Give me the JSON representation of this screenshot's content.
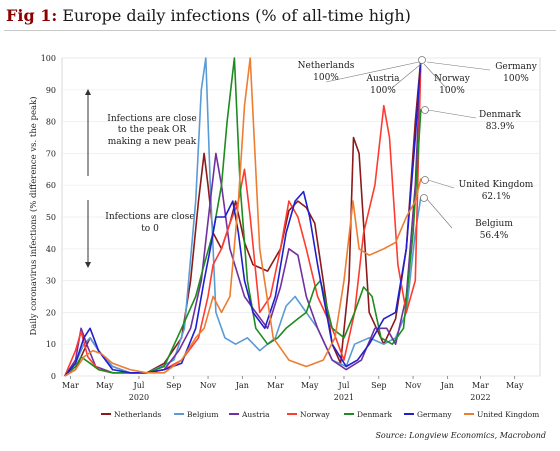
{
  "figure": {
    "title_prefix": "Fig 1:",
    "title": "Europe daily infections (% of all-time high)",
    "source": "Source: Longview Economics, Macrobond"
  },
  "chart_data": {
    "type": "line",
    "ylabel": "Daily coronavirus infections (% difference vs. the peak)",
    "ylim": [
      0,
      100
    ],
    "yticks": [
      0,
      10,
      20,
      30,
      40,
      50,
      60,
      70,
      80,
      90,
      100
    ],
    "x_start": "2020-02-15",
    "x_end": "2022-06-15",
    "month_ticks": [
      {
        "label": "Mar",
        "date": "2020-03-01"
      },
      {
        "label": "May",
        "date": "2020-05-01"
      },
      {
        "label": "Jul",
        "date": "2020-07-01"
      },
      {
        "label": "Sep",
        "date": "2020-09-01"
      },
      {
        "label": "Nov",
        "date": "2020-11-01"
      },
      {
        "label": "Jan",
        "date": "2021-01-01"
      },
      {
        "label": "Mar",
        "date": "2021-03-01"
      },
      {
        "label": "May",
        "date": "2021-05-01"
      },
      {
        "label": "Jul",
        "date": "2021-07-01"
      },
      {
        "label": "Sep",
        "date": "2021-09-01"
      },
      {
        "label": "Nov",
        "date": "2021-11-01"
      },
      {
        "label": "Jan",
        "date": "2022-01-01"
      },
      {
        "label": "Mar",
        "date": "2022-03-01"
      },
      {
        "label": "May",
        "date": "2022-05-01"
      }
    ],
    "year_labels": [
      {
        "label": "2020",
        "date": "2020-07-01"
      },
      {
        "label": "2021",
        "date": "2021-07-01"
      },
      {
        "label": "2022",
        "date": "2022-03-01"
      }
    ],
    "annotations": {
      "upper": "Infections are close to the peak OR making a new peak",
      "upper_lines": [
        "Infections are close",
        "to the peak OR",
        "making a new peak"
      ],
      "lower_lines": [
        "Infections are close",
        "to 0"
      ]
    },
    "end_labels": [
      {
        "name": "Netherlands",
        "value_text": "100%"
      },
      {
        "name": "Austria",
        "value_text": "100%"
      },
      {
        "name": "Norway",
        "value_text": "100%"
      },
      {
        "name": "Germany",
        "value_text": "100%"
      },
      {
        "name": "Denmark",
        "value_text": "83.9%"
      },
      {
        "name": "United Kingdom",
        "value_text": "62.1%"
      },
      {
        "name": "Belgium",
        "value_text": "56.4%"
      }
    ],
    "series": [
      {
        "name": "Netherlands",
        "color": "#8b1a1a",
        "x": [
          "2020-02-20",
          "2020-03-10",
          "2020-03-25",
          "2020-04-05",
          "2020-04-20",
          "2020-05-15",
          "2020-06-15",
          "2020-07-15",
          "2020-08-15",
          "2020-09-15",
          "2020-10-01",
          "2020-10-15",
          "2020-10-25",
          "2020-11-01",
          "2020-11-10",
          "2020-11-25",
          "2020-12-10",
          "2020-12-20",
          "2021-01-05",
          "2021-01-20",
          "2021-02-15",
          "2021-03-10",
          "2021-03-25",
          "2021-04-10",
          "2021-04-25",
          "2021-05-10",
          "2021-05-25",
          "2021-06-10",
          "2021-06-25",
          "2021-07-10",
          "2021-07-18",
          "2021-07-28",
          "2021-08-15",
          "2021-09-10",
          "2021-10-01",
          "2021-10-20",
          "2021-11-05",
          "2021-11-15"
        ],
        "y": [
          0,
          2,
          8,
          12,
          8,
          3,
          1,
          1,
          4,
          12,
          30,
          55,
          70,
          60,
          45,
          40,
          48,
          55,
          42,
          35,
          33,
          40,
          52,
          55,
          53,
          48,
          30,
          10,
          4,
          30,
          75,
          70,
          20,
          10,
          18,
          40,
          80,
          100
        ]
      },
      {
        "name": "Belgium",
        "color": "#5b9bd5",
        "x": [
          "2020-02-20",
          "2020-03-10",
          "2020-03-25",
          "2020-04-05",
          "2020-04-20",
          "2020-05-15",
          "2020-06-15",
          "2020-07-15",
          "2020-08-10",
          "2020-09-01",
          "2020-09-20",
          "2020-10-10",
          "2020-10-20",
          "2020-10-28",
          "2020-11-05",
          "2020-11-15",
          "2020-12-01",
          "2020-12-20",
          "2021-01-10",
          "2021-02-01",
          "2021-03-01",
          "2021-03-20",
          "2021-04-05",
          "2021-04-25",
          "2021-05-15",
          "2021-06-10",
          "2021-07-05",
          "2021-07-20",
          "2021-08-15",
          "2021-09-10",
          "2021-10-01",
          "2021-10-20",
          "2021-11-05",
          "2021-11-15"
        ],
        "y": [
          0,
          4,
          10,
          12,
          8,
          3,
          1,
          1,
          3,
          5,
          15,
          55,
          90,
          100,
          60,
          20,
          12,
          10,
          12,
          8,
          12,
          22,
          25,
          20,
          15,
          5,
          3,
          10,
          12,
          10,
          12,
          20,
          45,
          56.4
        ]
      },
      {
        "name": "Austria",
        "color": "#7030a0",
        "x": [
          "2020-02-20",
          "2020-03-10",
          "2020-03-20",
          "2020-03-30",
          "2020-04-15",
          "2020-05-15",
          "2020-06-15",
          "2020-07-15",
          "2020-08-15",
          "2020-09-10",
          "2020-10-01",
          "2020-10-20",
          "2020-11-05",
          "2020-11-15",
          "2020-11-25",
          "2020-12-10",
          "2021-01-05",
          "2021-01-25",
          "2021-02-15",
          "2021-03-10",
          "2021-03-25",
          "2021-04-10",
          "2021-04-25",
          "2021-05-15",
          "2021-06-10",
          "2021-07-05",
          "2021-08-01",
          "2021-08-25",
          "2021-09-15",
          "2021-10-01",
          "2021-10-20",
          "2021-11-05",
          "2021-11-15"
        ],
        "y": [
          0,
          5,
          15,
          10,
          3,
          1,
          1,
          1,
          2,
          8,
          15,
          30,
          55,
          70,
          60,
          40,
          25,
          20,
          15,
          28,
          40,
          38,
          25,
          15,
          5,
          2,
          5,
          15,
          15,
          10,
          25,
          60,
          100
        ]
      },
      {
        "name": "Norway",
        "color": "#ff3b2f",
        "x": [
          "2020-02-20",
          "2020-03-10",
          "2020-03-20",
          "2020-04-01",
          "2020-04-20",
          "2020-05-15",
          "2020-06-15",
          "2020-07-15",
          "2020-08-15",
          "2020-09-15",
          "2020-10-15",
          "2020-11-01",
          "2020-11-10",
          "2020-11-25",
          "2020-12-10",
          "2020-12-25",
          "2021-01-05",
          "2021-01-15",
          "2021-02-01",
          "2021-02-20",
          "2021-03-10",
          "2021-03-25",
          "2021-04-10",
          "2021-04-25",
          "2021-05-15",
          "2021-06-10",
          "2021-07-01",
          "2021-07-20",
          "2021-08-05",
          "2021-08-25",
          "2021-09-10",
          "2021-09-20",
          "2021-10-05",
          "2021-10-20",
          "2021-11-05",
          "2021-11-15"
        ],
        "y": [
          0,
          8,
          14,
          6,
          2,
          1,
          1,
          1,
          2,
          5,
          12,
          25,
          35,
          40,
          48,
          55,
          65,
          50,
          20,
          25,
          40,
          55,
          50,
          40,
          25,
          15,
          5,
          20,
          45,
          60,
          85,
          75,
          35,
          20,
          30,
          100
        ]
      },
      {
        "name": "Denmark",
        "color": "#1e8c1e",
        "x": [
          "2020-02-20",
          "2020-03-10",
          "2020-03-20",
          "2020-04-05",
          "2020-04-20",
          "2020-05-15",
          "2020-06-15",
          "2020-07-15",
          "2020-08-15",
          "2020-09-15",
          "2020-10-10",
          "2020-10-25",
          "2020-11-10",
          "2020-11-25",
          "2020-12-05",
          "2020-12-18",
          "2020-12-28",
          "2021-01-10",
          "2021-01-25",
          "2021-02-15",
          "2021-03-05",
          "2021-03-20",
          "2021-04-10",
          "2021-04-25",
          "2021-05-10",
          "2021-05-20",
          "2021-06-10",
          "2021-07-01",
          "2021-07-20",
          "2021-08-05",
          "2021-08-20",
          "2021-09-05",
          "2021-09-25",
          "2021-10-15",
          "2021-11-01",
          "2021-11-10",
          "2021-11-15"
        ],
        "y": [
          0,
          3,
          6,
          4,
          2,
          1,
          1,
          1,
          3,
          15,
          25,
          35,
          45,
          60,
          80,
          100,
          60,
          30,
          15,
          10,
          12,
          15,
          18,
          20,
          28,
          30,
          15,
          12,
          20,
          28,
          25,
          12,
          10,
          15,
          45,
          70,
          83.9
        ]
      },
      {
        "name": "Germany",
        "color": "#1f1fd1",
        "x": [
          "2020-02-20",
          "2020-03-10",
          "2020-03-25",
          "2020-04-05",
          "2020-04-20",
          "2020-05-15",
          "2020-06-15",
          "2020-07-15",
          "2020-08-15",
          "2020-09-15",
          "2020-10-10",
          "2020-10-25",
          "2020-11-05",
          "2020-11-15",
          "2020-12-01",
          "2020-12-15",
          "2020-12-25",
          "2021-01-05",
          "2021-01-20",
          "2021-02-10",
          "2021-03-01",
          "2021-03-20",
          "2021-04-05",
          "2021-04-20",
          "2021-05-01",
          "2021-05-15",
          "2021-06-10",
          "2021-07-05",
          "2021-07-25",
          "2021-08-15",
          "2021-09-10",
          "2021-10-01",
          "2021-10-20",
          "2021-11-05",
          "2021-11-15"
        ],
        "y": [
          0,
          4,
          12,
          15,
          8,
          2,
          1,
          1,
          2,
          4,
          15,
          30,
          40,
          50,
          50,
          55,
          45,
          30,
          20,
          15,
          25,
          45,
          55,
          58,
          50,
          35,
          10,
          3,
          5,
          10,
          18,
          20,
          40,
          75,
          100
        ]
      },
      {
        "name": "United Kingdom",
        "color": "#ed7d31",
        "x": [
          "2020-02-20",
          "2020-03-10",
          "2020-03-25",
          "2020-04-10",
          "2020-04-25",
          "2020-05-15",
          "2020-06-15",
          "2020-07-15",
          "2020-08-15",
          "2020-09-15",
          "2020-10-10",
          "2020-10-25",
          "2020-11-10",
          "2020-11-25",
          "2020-12-10",
          "2020-12-25",
          "2021-01-05",
          "2021-01-15",
          "2021-02-01",
          "2021-02-25",
          "2021-03-25",
          "2021-04-25",
          "2021-05-25",
          "2021-06-15",
          "2021-07-01",
          "2021-07-17",
          "2021-07-28",
          "2021-08-15",
          "2021-09-10",
          "2021-10-01",
          "2021-10-20",
          "2021-11-05",
          "2021-11-15"
        ],
        "y": [
          0,
          2,
          6,
          8,
          7,
          4,
          2,
          1,
          1,
          5,
          12,
          15,
          25,
          20,
          25,
          55,
          85,
          100,
          40,
          12,
          5,
          3,
          5,
          12,
          30,
          55,
          40,
          38,
          40,
          42,
          50,
          55,
          62.1
        ]
      }
    ]
  }
}
